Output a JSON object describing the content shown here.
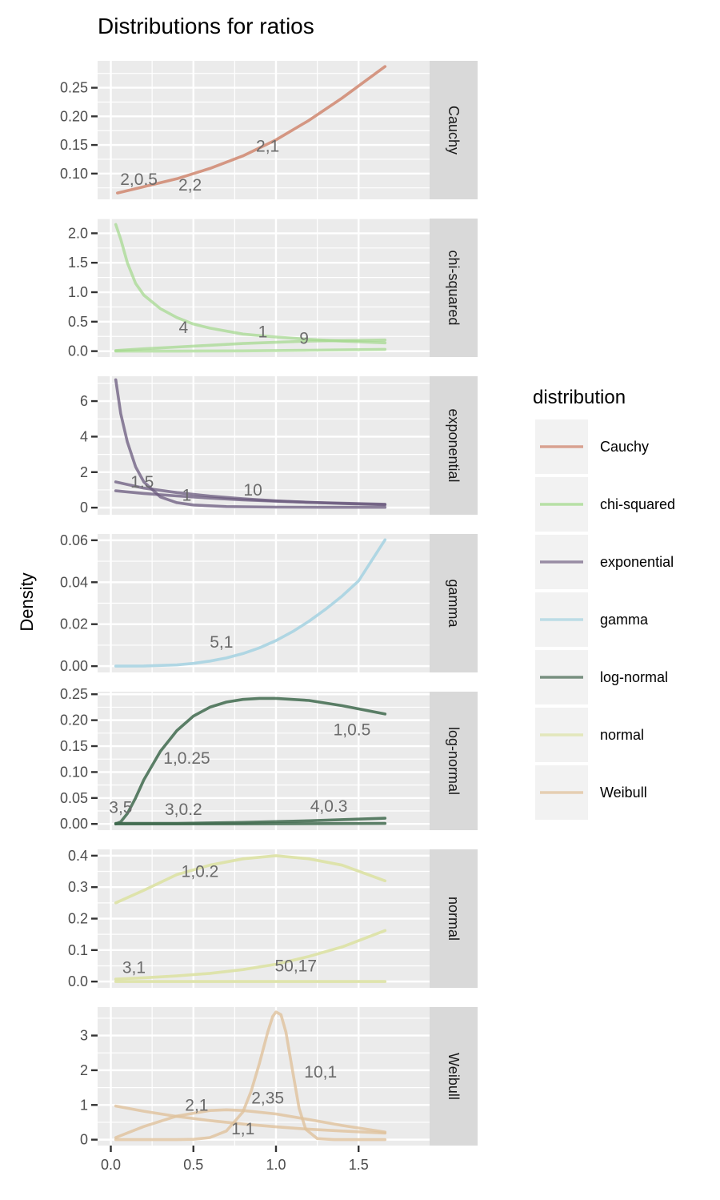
{
  "chart_data": {
    "type": "line",
    "title": "Distributions for ratios",
    "xlabel": "",
    "ylabel": "Density",
    "xlim": [
      -0.08,
      1.93
    ],
    "x_ticks": [
      0.0,
      0.5,
      1.0,
      1.5
    ],
    "x_tick_labels": [
      "0.0",
      "0.5",
      "1.0",
      "1.5"
    ],
    "grid": true,
    "legend": {
      "title": "distribution",
      "placement": "right",
      "entries": [
        {
          "label": "Cauchy",
          "color": "#d08770"
        },
        {
          "label": "chi-squared",
          "color": "#a3d98c"
        },
        {
          "label": "exponential",
          "color": "#7a6a8a"
        },
        {
          "label": "gamma",
          "color": "#a9d4e2"
        },
        {
          "label": "log-normal",
          "color": "#4f6f5a"
        },
        {
          "label": "normal",
          "color": "#dde3a8"
        },
        {
          "label": "Weibull",
          "color": "#e0c29c"
        }
      ]
    },
    "panels": [
      {
        "strip": "Cauchy",
        "color": "#d08770",
        "opacity": 0.85,
        "ylim": [
          0.055,
          0.297
        ],
        "y_ticks": [
          0.1,
          0.15,
          0.2,
          0.25
        ],
        "y_tick_labels": [
          "0.10",
          "0.15",
          "0.20",
          "0.25"
        ],
        "series": [
          {
            "x": [
              0.04,
              0.2,
              0.4,
              0.6,
              0.8,
              1.0,
              1.2,
              1.4,
              1.66
            ],
            "y": [
              0.066,
              0.077,
              0.091,
              0.109,
              0.131,
              0.159,
              0.193,
              0.232,
              0.287
            ]
          }
        ],
        "labels": [
          {
            "text": "2,0.5",
            "x": 0.17,
            "y": 0.09
          },
          {
            "text": "2,2",
            "x": 0.48,
            "y": 0.08
          },
          {
            "text": "2,1",
            "x": 0.95,
            "y": 0.148
          }
        ]
      },
      {
        "strip": "chi-squared",
        "color": "#a3d98c",
        "opacity": 0.7,
        "ylim": [
          -0.1,
          2.25
        ],
        "y_ticks": [
          0.0,
          0.5,
          1.0,
          1.5,
          2.0
        ],
        "y_tick_labels": [
          "0.0",
          "0.5",
          "1.0",
          "1.5",
          "2.0"
        ],
        "series": [
          {
            "x": [
              0.03,
              0.06,
              0.1,
              0.15,
              0.2,
              0.3,
              0.4,
              0.5,
              0.6,
              0.8,
              1.0,
              1.2,
              1.4,
              1.66
            ],
            "y": [
              2.15,
              1.9,
              1.5,
              1.15,
              0.95,
              0.72,
              0.57,
              0.46,
              0.39,
              0.29,
              0.24,
              0.2,
              0.17,
              0.14
            ]
          },
          {
            "x": [
              0.03,
              0.2,
              0.4,
              0.6,
              0.8,
              1.0,
              1.2,
              1.4,
              1.66
            ],
            "y": [
              0.01,
              0.04,
              0.07,
              0.1,
              0.13,
              0.15,
              0.17,
              0.18,
              0.19
            ]
          },
          {
            "x": [
              0.03,
              0.4,
              0.8,
              1.2,
              1.66
            ],
            "y": [
              0.0,
              0.0,
              0.005,
              0.015,
              0.03
            ]
          }
        ],
        "labels": [
          {
            "text": "4",
            "x": 0.44,
            "y": 0.4
          },
          {
            "text": "1",
            "x": 0.92,
            "y": 0.33
          },
          {
            "text": "9",
            "x": 1.17,
            "y": 0.22
          }
        ]
      },
      {
        "strip": "exponential",
        "color": "#6a5a7e",
        "opacity": 0.75,
        "ylim": [
          -0.4,
          7.4
        ],
        "y_ticks": [
          0,
          2,
          4,
          6
        ],
        "y_tick_labels": [
          "0",
          "2",
          "4",
          "6"
        ],
        "series": [
          {
            "x": [
              0.03,
              0.06,
              0.1,
              0.15,
              0.2,
              0.3,
              0.4,
              0.5,
              0.7,
              1.0,
              1.3,
              1.66
            ],
            "y": [
              7.2,
              5.3,
              3.7,
              2.3,
              1.45,
              0.6,
              0.28,
              0.15,
              0.06,
              0.03,
              0.02,
              0.02
            ]
          },
          {
            "x": [
              0.03,
              0.2,
              0.4,
              0.6,
              0.8,
              1.0,
              1.2,
              1.4,
              1.66
            ],
            "y": [
              1.45,
              1.1,
              0.85,
              0.65,
              0.5,
              0.38,
              0.3,
              0.23,
              0.17
            ]
          },
          {
            "x": [
              0.03,
              0.2,
              0.4,
              0.6,
              0.8,
              1.0,
              1.2,
              1.4,
              1.66
            ],
            "y": [
              0.95,
              0.8,
              0.66,
              0.54,
              0.44,
              0.36,
              0.3,
              0.25,
              0.19
            ]
          }
        ],
        "labels": [
          {
            "text": "1.5",
            "x": 0.19,
            "y": 1.45
          },
          {
            "text": "1",
            "x": 0.46,
            "y": 0.7
          },
          {
            "text": "10",
            "x": 0.86,
            "y": 1.0
          }
        ]
      },
      {
        "strip": "gamma",
        "color": "#a9d4e2",
        "opacity": 0.9,
        "ylim": [
          -0.003,
          0.063
        ],
        "y_ticks": [
          0.0,
          0.02,
          0.04,
          0.06
        ],
        "y_tick_labels": [
          "0.00",
          "0.02",
          "0.04",
          "0.06"
        ],
        "series": [
          {
            "x": [
              0.03,
              0.2,
              0.4,
              0.5,
              0.6,
              0.7,
              0.8,
              0.9,
              1.0,
              1.1,
              1.2,
              1.3,
              1.4,
              1.5,
              1.66
            ],
            "y": [
              0.0,
              0.0001,
              0.0006,
              0.0013,
              0.0024,
              0.0039,
              0.006,
              0.0087,
              0.0122,
              0.0164,
              0.0214,
              0.0271,
              0.0334,
              0.0406,
              0.0602
            ]
          }
        ],
        "labels": [
          {
            "text": "5,1",
            "x": 0.67,
            "y": 0.0115
          }
        ]
      },
      {
        "strip": "log-normal",
        "color": "#3f6a4e",
        "opacity": 0.85,
        "ylim": [
          -0.012,
          0.255
        ],
        "y_ticks": [
          0.0,
          0.05,
          0.1,
          0.15,
          0.2,
          0.25
        ],
        "y_tick_labels": [
          "0.00",
          "0.05",
          "0.10",
          "0.15",
          "0.20",
          "0.25"
        ],
        "series": [
          {
            "x": [
              0.03,
              0.06,
              0.1,
              0.15,
              0.2,
              0.3,
              0.4,
              0.5,
              0.6,
              0.7,
              0.8,
              0.9,
              1.0,
              1.2,
              1.4,
              1.66
            ],
            "y": [
              0.0,
              0.004,
              0.02,
              0.05,
              0.085,
              0.14,
              0.18,
              0.208,
              0.225,
              0.235,
              0.24,
              0.242,
              0.242,
              0.238,
              0.228,
              0.212
            ]
          },
          {
            "x": [
              0.03,
              0.4,
              0.8,
              1.2,
              1.66
            ],
            "y": [
              0.001,
              0.001,
              0.003,
              0.006,
              0.011
            ]
          },
          {
            "x": [
              0.03,
              0.8,
              1.66
            ],
            "y": [
              0.0,
              0.0,
              0.001
            ]
          }
        ],
        "labels": [
          {
            "text": "1,0.5",
            "x": 1.46,
            "y": 0.182
          },
          {
            "text": "1,0.25",
            "x": 0.46,
            "y": 0.127
          },
          {
            "text": "3,5",
            "x": 0.06,
            "y": 0.032
          },
          {
            "text": "3,0.2",
            "x": 0.44,
            "y": 0.028
          },
          {
            "text": "4,0.3",
            "x": 1.32,
            "y": 0.034
          }
        ]
      },
      {
        "strip": "normal",
        "color": "#dde3a8",
        "opacity": 0.95,
        "ylim": [
          -0.02,
          0.42
        ],
        "y_ticks": [
          0.0,
          0.1,
          0.2,
          0.3,
          0.4
        ],
        "y_tick_labels": [
          "0.0",
          "0.1",
          "0.2",
          "0.3",
          "0.4"
        ],
        "series": [
          {
            "x": [
              0.03,
              0.2,
              0.4,
              0.6,
              0.8,
              1.0,
              1.2,
              1.4,
              1.66
            ],
            "y": [
              0.25,
              0.29,
              0.34,
              0.37,
              0.39,
              0.4,
              0.39,
              0.37,
              0.32
            ]
          },
          {
            "x": [
              0.03,
              0.2,
              0.4,
              0.6,
              0.8,
              1.0,
              1.2,
              1.4,
              1.66
            ],
            "y": [
              0.008,
              0.012,
              0.018,
              0.026,
              0.038,
              0.055,
              0.08,
              0.11,
              0.162
            ]
          },
          {
            "x": [
              0.03,
              0.8,
              1.66
            ],
            "y": [
              0.0,
              0.0,
              0.0
            ]
          }
        ],
        "labels": [
          {
            "text": "1,0.2",
            "x": 0.54,
            "y": 0.35
          },
          {
            "text": "3,1",
            "x": 0.14,
            "y": 0.045
          },
          {
            "text": "50,17",
            "x": 1.12,
            "y": 0.05
          }
        ]
      },
      {
        "strip": "Weibull",
        "color": "#e0c29c",
        "opacity": 0.8,
        "ylim": [
          -0.17,
          3.82
        ],
        "y_ticks": [
          0,
          1,
          2,
          3
        ],
        "y_tick_labels": [
          "0",
          "1",
          "2",
          "3"
        ],
        "series": [
          {
            "x": [
              0.03,
              0.2,
              0.4,
              0.6,
              0.8,
              1.0,
              1.2,
              1.4,
              1.66
            ],
            "y": [
              0.97,
              0.82,
              0.67,
              0.55,
              0.45,
              0.37,
              0.3,
              0.25,
              0.19
            ]
          },
          {
            "x": [
              0.03,
              0.2,
              0.4,
              0.6,
              0.7,
              0.8,
              1.0,
              1.2,
              1.4,
              1.66
            ],
            "y": [
              0.06,
              0.38,
              0.68,
              0.84,
              0.86,
              0.84,
              0.74,
              0.58,
              0.41,
              0.22
            ]
          },
          {
            "x": [
              0.03,
              0.4,
              0.5,
              0.6,
              0.7,
              0.8,
              0.85,
              0.9,
              0.95,
              0.98,
              1.0,
              1.03,
              1.06,
              1.1,
              1.14,
              1.18,
              1.25,
              1.35,
              1.66
            ],
            "y": [
              0.0,
              0.0,
              0.01,
              0.06,
              0.25,
              0.8,
              1.4,
              2.2,
              3.1,
              3.55,
              3.68,
              3.6,
              3.1,
              2.0,
              0.9,
              0.3,
              0.03,
              0.0,
              0.0
            ]
          }
        ],
        "labels": [
          {
            "text": "10,1",
            "x": 1.27,
            "y": 1.95
          },
          {
            "text": "2,1",
            "x": 0.52,
            "y": 1.0
          },
          {
            "text": "2,35",
            "x": 0.95,
            "y": 1.2
          },
          {
            "text": "1,1",
            "x": 0.8,
            "y": 0.32
          }
        ]
      }
    ]
  }
}
